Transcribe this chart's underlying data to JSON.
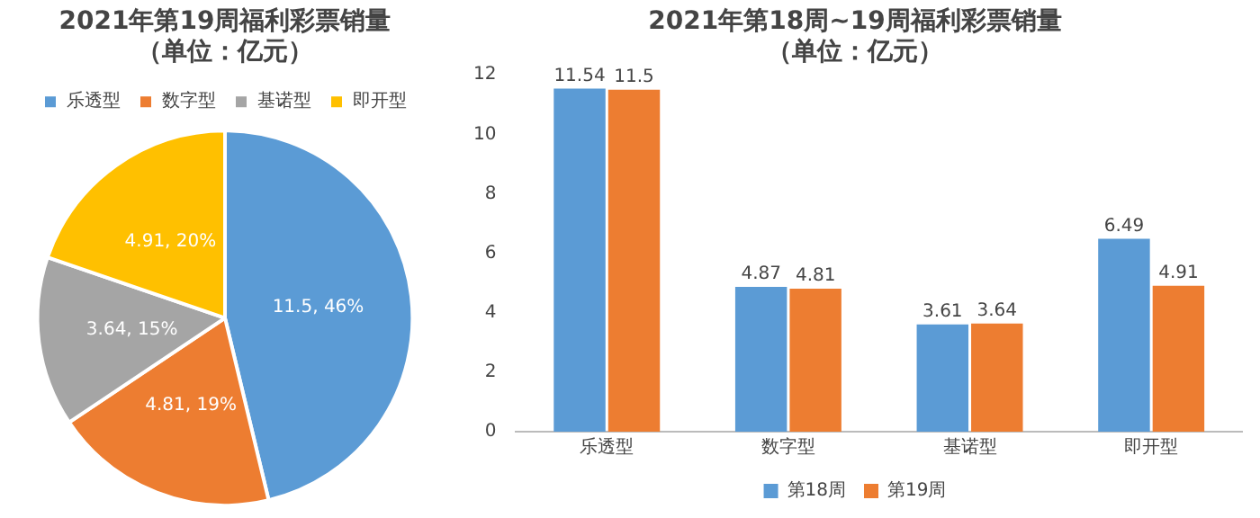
{
  "chart_data": [
    {
      "type": "pie",
      "title": "2021年第19周福利彩票销量",
      "subtitle": "（单位：亿元）",
      "categories": [
        "乐透型",
        "数字型",
        "基诺型",
        "即开型"
      ],
      "values": [
        11.5,
        4.81,
        3.64,
        4.91
      ],
      "colors": [
        "#5b9bd5",
        "#ed7d31",
        "#a5a5a5",
        "#ffc000"
      ],
      "value_labels": [
        "11.5, 46%",
        "4.81, 19%",
        "3.64, 15%",
        "4.91, 20%"
      ],
      "legend": "top"
    },
    {
      "type": "bar",
      "title": "2021年第18周~19周福利彩票销量",
      "subtitle": "（单位：亿元）",
      "categories": [
        "乐透型",
        "数字型",
        "基诺型",
        "即开型"
      ],
      "series": [
        {
          "name": "第18周",
          "color": "#5b9bd5",
          "values": [
            11.54,
            4.87,
            3.61,
            6.49
          ]
        },
        {
          "name": "第19周",
          "color": "#ed7d31",
          "values": [
            11.5,
            4.81,
            3.64,
            4.91
          ]
        }
      ],
      "ylim": [
        0,
        12
      ],
      "yticks": [
        0,
        2,
        4,
        6,
        8,
        10,
        12
      ],
      "grid": false,
      "data_labels": true,
      "legend": "bottom"
    }
  ]
}
